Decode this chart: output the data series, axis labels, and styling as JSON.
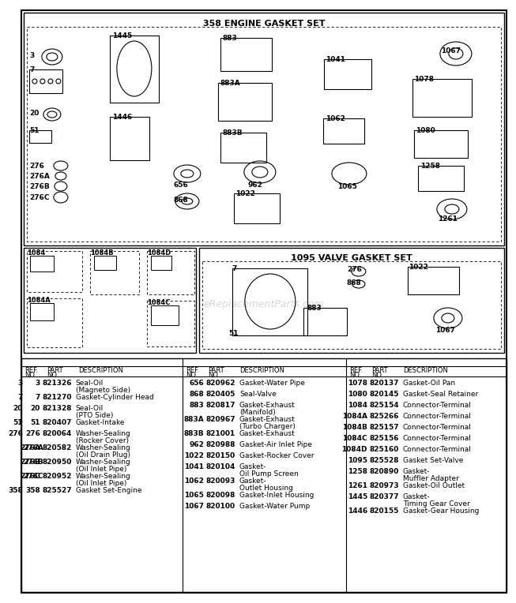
{
  "title_main": "358 ENGINE GASKET SET",
  "title_valve": "1095 VALVE GASKET SET",
  "page_bg": "#ffffff",
  "watermark": "eReplacementParts.com",
  "col1_data": [
    [
      "3",
      "821326",
      "Seal-Oil",
      "(Magneto Side)"
    ],
    [
      "7",
      "821270",
      "Gasket-Cylinder Head",
      ""
    ],
    [
      "20",
      "821328",
      "Seal-Oil",
      "(PTO Side)"
    ],
    [
      "51",
      "820407",
      "Gasket-Intake",
      ""
    ],
    [
      "276",
      "820064",
      "Washer-Sealing",
      "(Rocker Cover)"
    ],
    [
      "276A",
      "820582",
      "Washer-Sealing",
      "(Oil Drain Plug)"
    ],
    [
      "276B",
      "820950",
      "Washer-Sealing",
      "(Oil Inlet Pipe)"
    ],
    [
      "276C",
      "820952",
      "Washer-Sealing",
      "(Oil Inlet Pipe)"
    ],
    [
      "358",
      "825527",
      "Gasket Set-Engine",
      ""
    ]
  ],
  "col2_data": [
    [
      "656",
      "820962",
      "Gasket-Water Pipe",
      ""
    ],
    [
      "868",
      "820405",
      "Seal-Valve",
      ""
    ],
    [
      "883",
      "820817",
      "Gasket-Exhaust",
      "(Manifold)"
    ],
    [
      "883A",
      "820967",
      "Gasket-Exhaust",
      "(Turbo Charger)"
    ],
    [
      "883B",
      "821001",
      "Gasket-Exhaust",
      ""
    ],
    [
      "962",
      "820988",
      "Gasket-Air Inlet Pipe",
      ""
    ],
    [
      "1022",
      "820150",
      "Gasket-Rocker Cover",
      ""
    ],
    [
      "1041",
      "820104",
      "Gasket-",
      "Oil Pump Screen"
    ],
    [
      "1062",
      "820093",
      "Gasket-",
      "Outlet Housing"
    ],
    [
      "1065",
      "820098",
      "Gasket-Inlet Housing",
      ""
    ],
    [
      "1067",
      "820100",
      "Gasket-Water Pump",
      ""
    ]
  ],
  "col3_data": [
    [
      "1078",
      "820137",
      "Gasket-Oil Pan",
      ""
    ],
    [
      "1080",
      "820145",
      "Gasket-Seal Retainer",
      ""
    ],
    [
      "1084",
      "825154",
      "Connector-Terminal",
      ""
    ],
    [
      "1084A",
      "825266",
      "Connector-Terminal",
      ""
    ],
    [
      "1084B",
      "825157",
      "Connector-Terminal",
      ""
    ],
    [
      "1084C",
      "825156",
      "Connector-Terminal",
      ""
    ],
    [
      "1084D",
      "825160",
      "Connector-Terminal",
      ""
    ],
    [
      "1095",
      "825528",
      "Gasket Set-Valve",
      ""
    ],
    [
      "1258",
      "820890",
      "Gasket-",
      "Muffler Adapter"
    ],
    [
      "1261",
      "820973",
      "Gasket-Oil Outlet",
      ""
    ],
    [
      "1445",
      "820377",
      "Gasket-",
      "Timing Gear Cover"
    ],
    [
      "1446",
      "820155",
      "Gasket-Gear Housing",
      ""
    ]
  ]
}
